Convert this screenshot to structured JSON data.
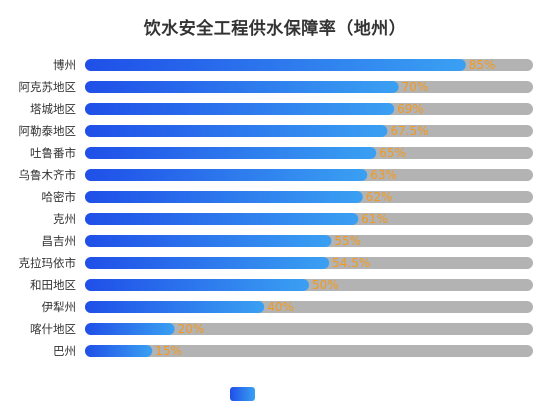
{
  "chart_data": {
    "type": "bar",
    "orientation": "horizontal",
    "title": "饮水安全工程供水保障率（地州）",
    "categories": [
      "博州",
      "阿克苏地区",
      "塔城地区",
      "阿勒泰地区",
      "吐鲁番市",
      "乌鲁木齐市",
      "哈密市",
      "克州",
      "昌吉州",
      "克拉玛依市",
      "和田地区",
      "伊犁州",
      "喀什地区",
      "巴州"
    ],
    "values": [
      85,
      70,
      69,
      67.5,
      65,
      63,
      62,
      61,
      55,
      54.5,
      50,
      40,
      20,
      15
    ],
    "value_labels": [
      "85%",
      "70%",
      "69%",
      "67.5%",
      "65%",
      "63%",
      "62%",
      "61%",
      "55%",
      "54.5%",
      "50%",
      "40%",
      "20%",
      "15%"
    ],
    "xlim": [
      0,
      100
    ],
    "grid": false,
    "legend_position": "bottom-center",
    "colors": {
      "bar_start": "#1f4fe8",
      "bar_end": "#3aa0f2",
      "track": "#b3b3b3",
      "value_label": "#f39a1e",
      "category_label": "#333333"
    }
  }
}
